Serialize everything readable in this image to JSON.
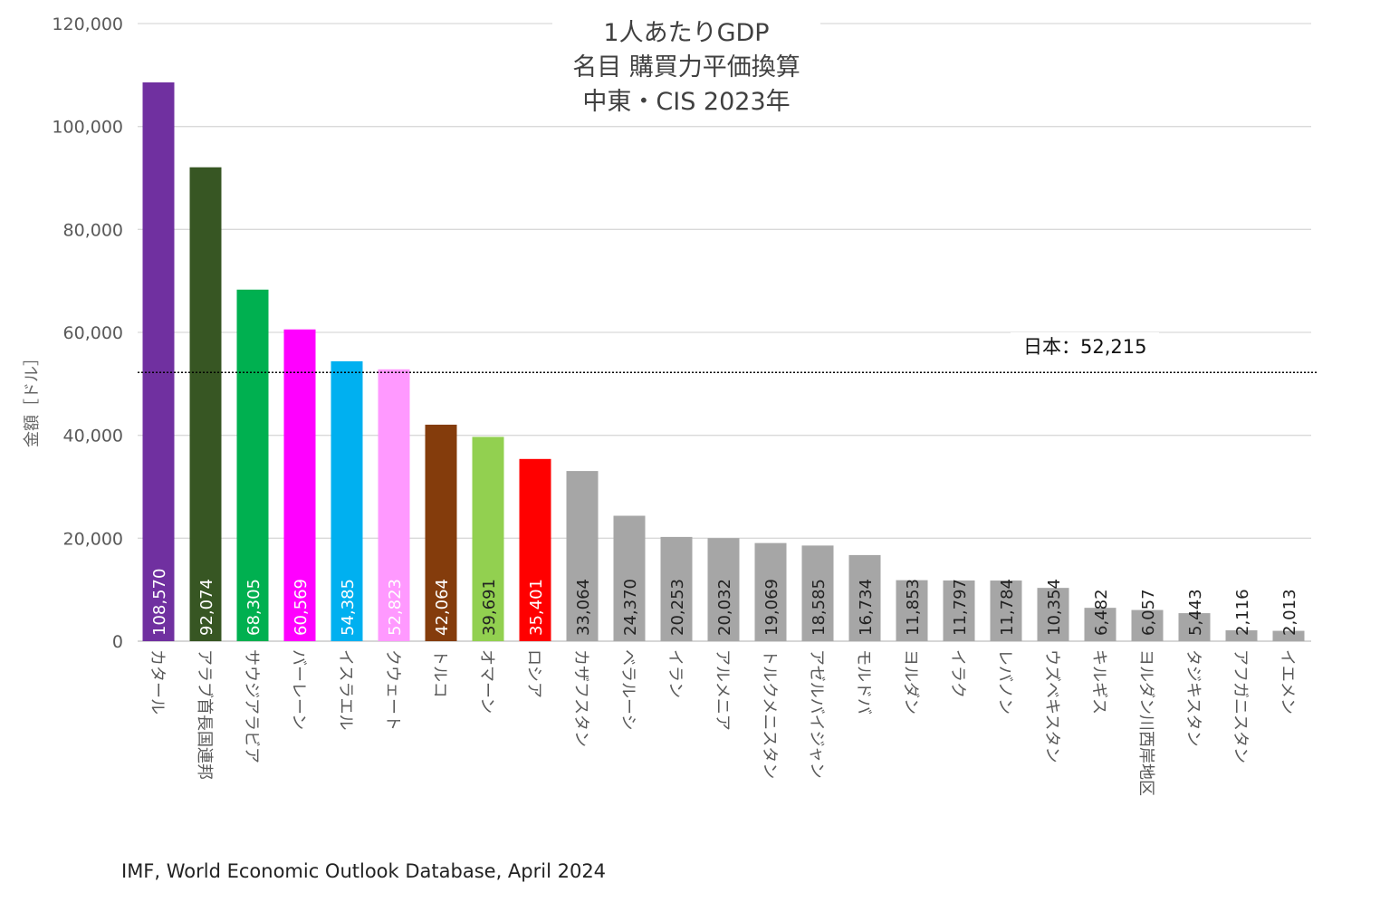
{
  "chart_data": {
    "type": "bar",
    "title_lines": [
      "1人あたりGDP",
      "名目 購買力平価換算",
      "中東・CIS 2023年"
    ],
    "ylabel": "金額［ドル］",
    "xlabel": "",
    "ylim": [
      0,
      120000
    ],
    "yticks": [
      0,
      20000,
      40000,
      60000,
      80000,
      100000,
      120000
    ],
    "ytick_labels": [
      "0",
      "20,000",
      "40,000",
      "60,000",
      "80,000",
      "100,000",
      "120,000"
    ],
    "grid": true,
    "categories": [
      "カタール",
      "アラブ首長国連邦",
      "サウジアラビア",
      "バーレーン",
      "イスラエル",
      "クウェート",
      "トルコ",
      "オマーン",
      "ロシア",
      "カザフスタン",
      "ベラルーシ",
      "イラン",
      "アルメニア",
      "トルクメニスタン",
      "アゼルバイジャン",
      "モルドバ",
      "ヨルダン",
      "イラク",
      "レバノン",
      "ウズベキスタン",
      "キルギス",
      "ヨルダン川西岸地区",
      "タジキスタン",
      "アフガニスタン",
      "イエメン"
    ],
    "values": [
      108570,
      92074,
      68305,
      60569,
      54385,
      52823,
      42064,
      39691,
      35401,
      33064,
      24370,
      20253,
      20032,
      19069,
      18585,
      16734,
      11853,
      11797,
      11784,
      10354,
      6482,
      6057,
      5443,
      2116,
      2013
    ],
    "value_labels": [
      "108,570",
      "92,074",
      "68,305",
      "60,569",
      "54,385",
      "52,823",
      "42,064",
      "39,691",
      "35,401",
      "33,064",
      "24,370",
      "20,253",
      "20,032",
      "19,069",
      "18,585",
      "16,734",
      "11,853",
      "11,797",
      "11,784",
      "10,354",
      "6,482",
      "6,057",
      "5,443",
      "2,116",
      "2,013"
    ],
    "colors": [
      "#7030a0",
      "#375623",
      "#00b050",
      "#ff00ff",
      "#00b0f0",
      "#ff99ff",
      "#843c0c",
      "#92d050",
      "#ff0000",
      "#a6a6a6",
      "#a6a6a6",
      "#a6a6a6",
      "#a6a6a6",
      "#a6a6a6",
      "#a6a6a6",
      "#a6a6a6",
      "#a6a6a6",
      "#a6a6a6",
      "#a6a6a6",
      "#a6a6a6",
      "#a6a6a6",
      "#a6a6a6",
      "#a6a6a6",
      "#a6a6a6",
      "#a6a6a6"
    ],
    "reference_line": {
      "label": "日本：52,215",
      "value": 52215,
      "style": "dotted"
    }
  },
  "source": "IMF, World Economic Outlook Database, April 2024"
}
